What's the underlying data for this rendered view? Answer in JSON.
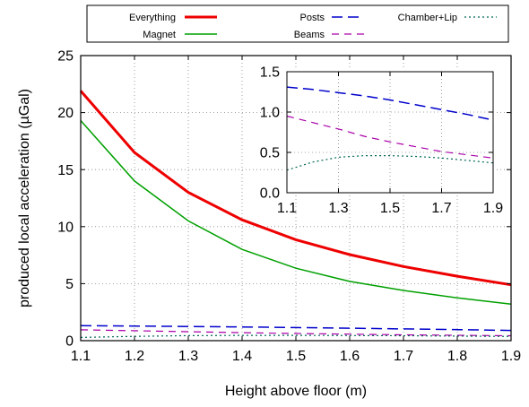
{
  "chart_data": [
    {
      "type": "line",
      "xlabel": "Height above floor (m)",
      "ylabel": "produced local acceleration (µGal)",
      "xlim": [
        1.1,
        1.9
      ],
      "ylim": [
        0,
        25
      ],
      "xticks": [
        "1.1",
        "1.2",
        "1.3",
        "1.4",
        "1.5",
        "1.6",
        "1.7",
        "1.8",
        "1.9"
      ],
      "yticks": [
        "0",
        "5",
        "10",
        "15",
        "20",
        "25"
      ],
      "grid": true,
      "legend_position": "top (above plot)",
      "x": [
        1.1,
        1.2,
        1.3,
        1.4,
        1.5,
        1.6,
        1.7,
        1.8,
        1.9
      ],
      "series": [
        {
          "name": "Everything",
          "color": "#ee0000",
          "style": "solid-thick",
          "values": [
            21.9,
            16.5,
            13.0,
            10.6,
            8.85,
            7.55,
            6.5,
            5.65,
            4.9
          ]
        },
        {
          "name": "Magnet",
          "color": "#00a000",
          "style": "solid",
          "values": [
            19.3,
            14.0,
            10.5,
            8.0,
            6.35,
            5.2,
            4.4,
            3.75,
            3.2
          ]
        },
        {
          "name": "Posts",
          "color": "#0000cc",
          "style": "long-dash",
          "values": [
            1.31,
            1.28,
            1.24,
            1.2,
            1.15,
            1.09,
            1.03,
            0.97,
            0.9
          ]
        },
        {
          "name": "Beams",
          "color": "#aa00aa",
          "style": "dash",
          "values": [
            0.95,
            0.87,
            0.79,
            0.7,
            0.63,
            0.57,
            0.51,
            0.47,
            0.43
          ]
        },
        {
          "name": "Chamber+Lip",
          "color": "#006655",
          "style": "dot",
          "values": [
            0.28,
            0.38,
            0.44,
            0.46,
            0.46,
            0.45,
            0.43,
            0.4,
            0.37
          ]
        }
      ]
    },
    {
      "type": "line",
      "role": "inset",
      "xlim": [
        1.1,
        1.9
      ],
      "ylim": [
        0,
        1.5
      ],
      "xticks": [
        "1.1",
        "1.3",
        "1.5",
        "1.7",
        "1.9"
      ],
      "yticks": [
        "0.0",
        "0.5",
        "1.0",
        "1.5"
      ],
      "grid": true,
      "x": [
        1.1,
        1.2,
        1.3,
        1.4,
        1.5,
        1.6,
        1.7,
        1.8,
        1.9
      ],
      "series": [
        {
          "name": "Posts",
          "color": "#0000cc",
          "style": "long-dash",
          "values": [
            1.31,
            1.28,
            1.24,
            1.2,
            1.15,
            1.09,
            1.03,
            0.97,
            0.9
          ]
        },
        {
          "name": "Beams",
          "color": "#aa00aa",
          "style": "dash",
          "values": [
            0.95,
            0.87,
            0.79,
            0.7,
            0.63,
            0.57,
            0.51,
            0.47,
            0.43
          ]
        },
        {
          "name": "Chamber+Lip",
          "color": "#006655",
          "style": "dot",
          "values": [
            0.28,
            0.38,
            0.44,
            0.46,
            0.46,
            0.45,
            0.43,
            0.4,
            0.37
          ]
        }
      ]
    }
  ]
}
